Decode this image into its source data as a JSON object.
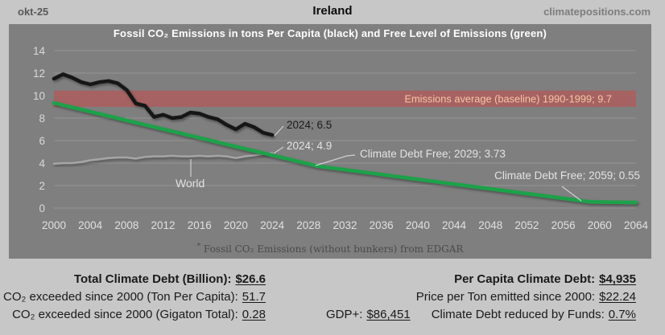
{
  "header": {
    "date": "okt-25",
    "title": "Ireland",
    "site": "climatepositions.com"
  },
  "chart_data": {
    "type": "line",
    "title": "Fossil CO₂ Emissions in tons Per Capita (black) and Free Level of Emissions (green)",
    "footnote_mark": "*",
    "footnote": "Fossil CO₂ Emissions (without bunkers) from EDGAR",
    "xlabel": "",
    "ylabel": "",
    "xlim": [
      2000,
      2065
    ],
    "ylim": [
      0,
      14
    ],
    "grid": true,
    "legend_position": "none",
    "x_ticks": [
      2000,
      2004,
      2008,
      2012,
      2016,
      2020,
      2024,
      2028,
      2032,
      2036,
      2040,
      2044,
      2048,
      2052,
      2056,
      2060,
      2064
    ],
    "y_ticks": [
      0,
      2,
      4,
      6,
      8,
      10,
      12,
      14
    ],
    "baseline_band": {
      "label": "Emissions average (baseline) 1990-1999; 9.7",
      "center": 9.7,
      "top": 10.45,
      "bottom": 9.0,
      "color": "#a96060",
      "label_color": "#f6c6a4"
    },
    "series": [
      {
        "id": "ireland",
        "name": "Ireland Fossil CO₂ Emissions (tons per capita, black)",
        "color": "#151515",
        "width": 4.5,
        "x_start": 2000,
        "x_step": 1,
        "values": [
          11.5,
          11.9,
          11.6,
          11.2,
          11.0,
          11.2,
          11.3,
          11.1,
          10.5,
          9.3,
          9.1,
          8.1,
          8.3,
          8.0,
          8.1,
          8.5,
          8.4,
          8.1,
          7.9,
          7.4,
          7.0,
          7.5,
          7.2,
          6.7,
          6.5
        ]
      },
      {
        "id": "world",
        "name": "World Fossil CO₂ Emissions (tons per capita, gray)",
        "color": "#a5a5a5",
        "width": 2.5,
        "x_start": 2000,
        "x_step": 1,
        "values": [
          3.95,
          4.0,
          4.0,
          4.1,
          4.25,
          4.35,
          4.45,
          4.5,
          4.5,
          4.4,
          4.55,
          4.6,
          4.6,
          4.65,
          4.6,
          4.6,
          4.65,
          4.6,
          4.65,
          4.6,
          4.45,
          4.6,
          4.7,
          4.8,
          4.9
        ]
      },
      {
        "id": "free-level",
        "name": "Free Level of Emissions (green)",
        "color": "#1fa24a",
        "width": 4.5,
        "points": [
          [
            2000,
            9.35
          ],
          [
            2005,
            8.38
          ],
          [
            2010,
            7.41
          ],
          [
            2015,
            6.44
          ],
          [
            2020,
            5.47
          ],
          [
            2024,
            4.7
          ],
          [
            2029,
            3.73
          ],
          [
            2035,
            3.09
          ],
          [
            2040,
            2.56
          ],
          [
            2045,
            2.03
          ],
          [
            2050,
            1.5
          ],
          [
            2055,
            0.97
          ],
          [
            2059,
            0.55
          ],
          [
            2064,
            0.5
          ]
        ]
      }
    ],
    "annotations": [
      {
        "id": "ireland-2024",
        "text": "2024; 6.5",
        "tone": "dark"
      },
      {
        "id": "world-2024",
        "text": "2024; 4.9",
        "tone": "light"
      },
      {
        "id": "world-label",
        "text": "World",
        "tone": "light"
      },
      {
        "id": "debt-free-2029",
        "text": "Climate Debt Free; 2029; 3.73",
        "tone": "light"
      },
      {
        "id": "debt-free-2059",
        "text": "Climate Debt Free; 2059; 0.55",
        "tone": "light"
      }
    ]
  },
  "stats": {
    "left": [
      {
        "label": "Total Climate Debt (Billion):",
        "value": "$26.6"
      },
      {
        "label": "CO₂ exceeded since 2000 (Ton Per Capita):",
        "value": "51.7"
      },
      {
        "label": "CO₂ exceeded since 2000 (Gigaton Total):",
        "value": "0.28"
      }
    ],
    "center": {
      "label": "GDP+:",
      "value": "$86,451"
    },
    "right": [
      {
        "label": "Per Capita Climate Debt:",
        "value": "$4,935"
      },
      {
        "label": "Price per Ton emitted since 2000:",
        "value": "$22.24"
      },
      {
        "label": "Climate Debt reduced by Funds:",
        "value": "0.7%"
      }
    ]
  },
  "colors": {
    "page_bg": "#c7c7c7",
    "chart_bg": "#7f7f7f",
    "gridline": "#949494",
    "tick_label": "#e0e0e0",
    "annotation_dark": "#1a1a1a",
    "annotation_light": "#e3e3e3",
    "leader_line": "#cfcfcf"
  }
}
